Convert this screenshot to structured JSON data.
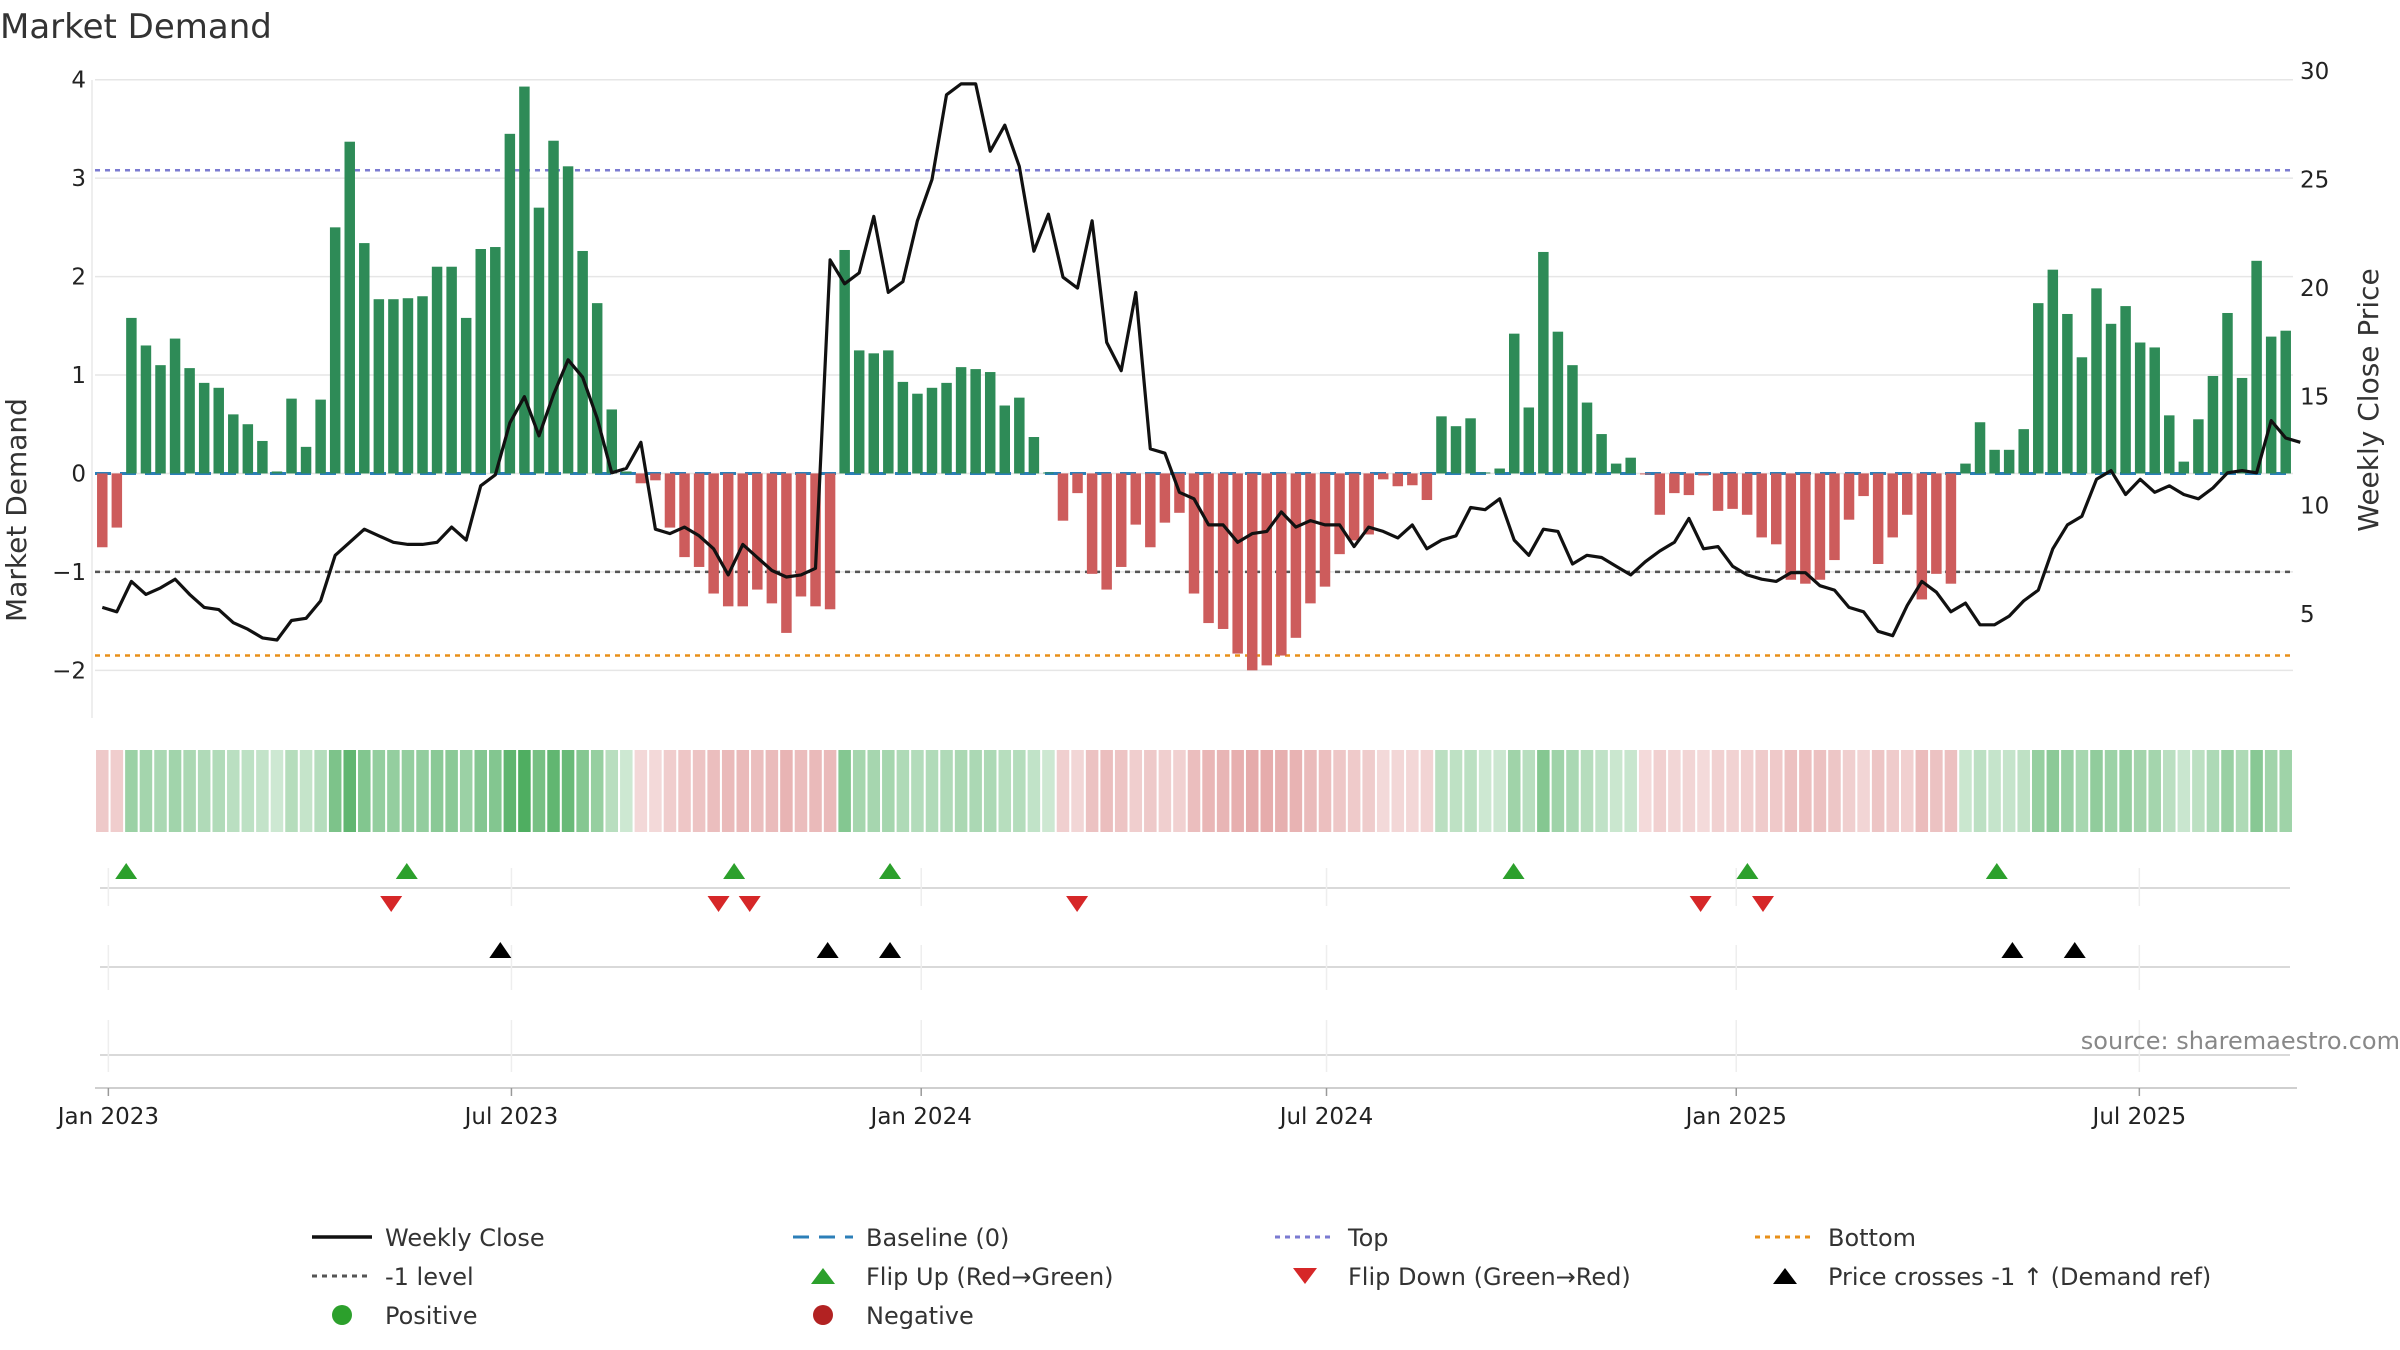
{
  "chart_data": {
    "type": "bar+line",
    "title": "Market Demand",
    "ylabel_left": "Market Demand",
    "ylabel_right": "Weekly Close Price",
    "ylim_left": [
      -2.2,
      4.2
    ],
    "ylim_right": [
      1.5,
      30.5
    ],
    "yticks_left": [
      4,
      3,
      2,
      1,
      0,
      -1,
      -2
    ],
    "yticks_left_labels": [
      "4",
      "3",
      "2",
      "1",
      "0",
      "−1",
      "−2"
    ],
    "yticks_right": [
      30,
      25,
      20,
      15,
      10,
      5
    ],
    "x_start": "2022-12-26",
    "x_end": "2025-09-08",
    "xticks": [
      {
        "date": "2023-01-01",
        "label": "Jan 2023"
      },
      {
        "date": "2023-07-01",
        "label": "Jul 2023"
      },
      {
        "date": "2024-01-01",
        "label": "Jan 2024"
      },
      {
        "date": "2024-07-01",
        "label": "Jul 2024"
      },
      {
        "date": "2025-01-01",
        "label": "Jan 2025"
      },
      {
        "date": "2025-07-01",
        "label": "Jul 2025"
      }
    ],
    "reference_lines": {
      "top": 3.08,
      "minus_one": -1,
      "bottom": -1.85,
      "baseline": 0
    },
    "demand": [
      -0.75,
      -0.55,
      1.58,
      1.3,
      1.1,
      1.37,
      1.07,
      0.92,
      0.87,
      0.6,
      0.5,
      0.33,
      0.02,
      0.76,
      0.27,
      0.75,
      2.5,
      3.37,
      2.34,
      1.77,
      1.77,
      1.78,
      1.8,
      2.1,
      2.1,
      1.58,
      2.28,
      2.3,
      3.45,
      3.93,
      2.7,
      3.38,
      3.12,
      2.26,
      1.73,
      0.65,
      0.02,
      -0.1,
      -0.07,
      -0.55,
      -0.85,
      -0.95,
      -1.22,
      -1.35,
      -1.35,
      -1.18,
      -1.32,
      -1.62,
      -1.25,
      -1.35,
      -1.38,
      2.27,
      1.25,
      1.22,
      1.25,
      0.93,
      0.81,
      0.87,
      0.92,
      1.08,
      1.06,
      1.03,
      0.69,
      0.77,
      0.37,
      0.01,
      -0.48,
      -0.2,
      -1.02,
      -1.18,
      -0.95,
      -0.52,
      -0.75,
      -0.5,
      -0.4,
      -1.22,
      -1.52,
      -1.58,
      -1.83,
      -2.0,
      -1.95,
      -1.85,
      -1.67,
      -1.32,
      -1.15,
      -0.82,
      -0.68,
      -0.62,
      -0.06,
      -0.13,
      -0.12,
      -0.27,
      0.58,
      0.48,
      0.56,
      0.01,
      0.05,
      1.42,
      0.67,
      2.25,
      1.44,
      1.1,
      0.72,
      0.4,
      0.1,
      0.16,
      -0.01,
      -0.42,
      -0.2,
      -0.22,
      -0.02,
      -0.38,
      -0.36,
      -0.42,
      -0.65,
      -0.72,
      -1.08,
      -1.12,
      -1.08,
      -0.88,
      -0.47,
      -0.23,
      -0.92,
      -0.65,
      -0.42,
      -1.28,
      -1.02,
      -1.12,
      0.1,
      0.52,
      0.24,
      0.24,
      0.45,
      1.73,
      2.07,
      1.62,
      1.18,
      1.88,
      1.52,
      1.7,
      1.33,
      1.28,
      0.59,
      0.12,
      0.55,
      0.99,
      1.63,
      0.97,
      2.16,
      1.39,
      1.45
    ],
    "close": [
      5.3,
      5.1,
      6.5,
      5.9,
      6.2,
      6.6,
      5.9,
      5.3,
      5.2,
      4.6,
      4.3,
      3.9,
      3.8,
      4.7,
      4.8,
      5.6,
      7.7,
      8.3,
      8.9,
      8.6,
      8.3,
      8.2,
      8.2,
      8.3,
      9.0,
      8.4,
      10.9,
      11.4,
      13.8,
      15.0,
      13.2,
      15.1,
      16.7,
      15.9,
      14.0,
      11.5,
      11.7,
      12.9,
      8.9,
      8.7,
      9.0,
      8.6,
      8.0,
      6.8,
      8.2,
      7.6,
      7.0,
      6.7,
      6.8,
      7.1,
      21.3,
      20.2,
      20.7,
      23.3,
      19.8,
      20.3,
      23.1,
      25.0,
      28.9,
      29.4,
      29.4,
      26.3,
      27.5,
      25.6,
      21.7,
      23.4,
      20.5,
      20.0,
      23.1,
      17.5,
      16.2,
      19.8,
      12.6,
      12.4,
      10.6,
      10.3,
      9.1,
      9.1,
      8.3,
      8.7,
      8.8,
      9.7,
      9.0,
      9.3,
      9.1,
      9.1,
      8.1,
      9.0,
      8.8,
      8.5,
      9.1,
      8.0,
      8.4,
      8.6,
      9.9,
      9.8,
      10.3,
      8.4,
      7.7,
      8.9,
      8.8,
      7.3,
      7.7,
      7.6,
      7.2,
      6.8,
      7.4,
      7.9,
      8.3,
      9.4,
      8.0,
      8.1,
      7.2,
      6.8,
      6.6,
      6.5,
      6.9,
      6.9,
      6.3,
      6.1,
      5.3,
      5.1,
      4.2,
      4.0,
      5.4,
      6.5,
      6.0,
      5.1,
      5.5,
      4.5,
      4.5,
      4.9,
      5.6,
      6.1,
      8.0,
      9.1,
      9.5,
      11.2,
      11.6,
      10.5,
      11.2,
      10.6,
      10.9,
      10.5,
      10.3,
      10.8,
      11.5,
      11.6,
      11.5,
      13.9,
      13.1,
      12.9
    ],
    "heat_strip": {
      "positive_color": "#4dad5f",
      "negative_color": "#d77c7c"
    },
    "markers": {
      "flip_up": [
        "2023-01-09",
        "2023-05-15",
        "2023-10-09",
        "2023-12-18",
        "2024-09-23",
        "2025-01-06",
        "2025-04-28"
      ],
      "flip_down": [
        "2023-05-08",
        "2023-10-02",
        "2023-10-16",
        "2024-03-11",
        "2024-12-16",
        "2025-01-13"
      ],
      "price_cross": [
        "2023-06-26",
        "2023-11-20",
        "2023-12-18",
        "2025-05-05",
        "2025-06-02"
      ]
    },
    "legend": [
      {
        "label": "Weekly Close",
        "style": "line-solid",
        "color": "#111111"
      },
      {
        "label": "Baseline (0)",
        "style": "line-dash",
        "color": "#2c7fb8"
      },
      {
        "label": "Top",
        "style": "line-dot",
        "color": "#7b7bd1"
      },
      {
        "label": "Bottom",
        "style": "line-dot",
        "color": "#e8901a"
      },
      {
        "label": "-1 level",
        "style": "line-dot",
        "color": "#555555"
      },
      {
        "label": "Flip Up (Red→Green)",
        "style": "tri-up",
        "color": "#2ca02c"
      },
      {
        "label": "Flip Down (Green→Red)",
        "style": "tri-down",
        "color": "#d62728"
      },
      {
        "label": "Price crosses -1 ↑ (Demand ref)",
        "style": "tri-up",
        "color": "#000000"
      },
      {
        "label": "Positive",
        "style": "dot",
        "color": "#2ca02c"
      },
      {
        "label": "Negative",
        "style": "dot",
        "color": "#b22222"
      }
    ],
    "colors": {
      "bar_positive": "#2e8b57",
      "bar_negative": "#cd5c5c",
      "price_line": "#111111"
    }
  },
  "source_note": "source: sharemaestro.com"
}
